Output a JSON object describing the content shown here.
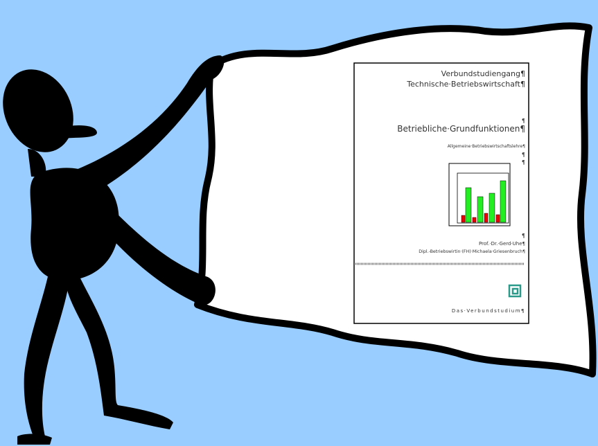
{
  "document": {
    "header": {
      "line1": "Verbundstudiengang¶",
      "line2": "Technische·Betriebswirtschaft¶"
    },
    "blank1": "¶",
    "title": "Betriebliche·Grundfunktionen¶",
    "subtitle": "Allgemeine·Betriebswirtschaftslehre¶",
    "blank2": "¶",
    "blank3": "¶",
    "blank4": "¶",
    "authors": [
      "Prof.·Dr.·Gerd·Uhe¶",
      "Dipl.-Betriebswirtin·(FH)·Michaela·Griesenbruch¶"
    ],
    "footer": "Das·Verbundstudium¶"
  }
}
